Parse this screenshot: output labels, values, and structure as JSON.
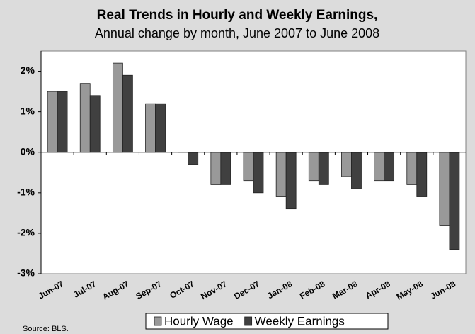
{
  "chart_data": {
    "type": "bar",
    "title": "Real Trends in Hourly and Weekly Earnings,",
    "subtitle": "Annual change by month, June 2007 to June 2008",
    "categories": [
      "Jun-07",
      "Jul-07",
      "Aug-07",
      "Sep-07",
      "Oct-07",
      "Nov-07",
      "Dec-07",
      "Jan-08",
      "Feb-08",
      "Mar-08",
      "Apr-08",
      "May-08",
      "Jun-08"
    ],
    "series": [
      {
        "name": "Hourly Wage",
        "color": "#999999",
        "values": [
          1.5,
          1.7,
          2.2,
          1.2,
          0,
          -0.8,
          -0.7,
          -1.1,
          -0.7,
          -0.6,
          -0.7,
          -0.8,
          -1.8
        ]
      },
      {
        "name": "Weekly Earnings",
        "color": "#404040",
        "values": [
          1.5,
          1.4,
          1.9,
          1.2,
          -0.3,
          -0.8,
          -1.0,
          -1.4,
          -0.8,
          -0.9,
          -0.7,
          -1.1,
          -2.4
        ]
      }
    ],
    "ylim": [
      -3,
      2.5
    ],
    "yticks": [
      {
        "value": -3,
        "label": "-3%"
      },
      {
        "value": -2,
        "label": "-2%"
      },
      {
        "value": -1,
        "label": "-1%"
      },
      {
        "value": 0,
        "label": "0%"
      },
      {
        "value": 1,
        "label": "1%"
      },
      {
        "value": 2,
        "label": "2%"
      }
    ],
    "grid": false,
    "legend": "bottom",
    "source": "Source: BLS."
  }
}
